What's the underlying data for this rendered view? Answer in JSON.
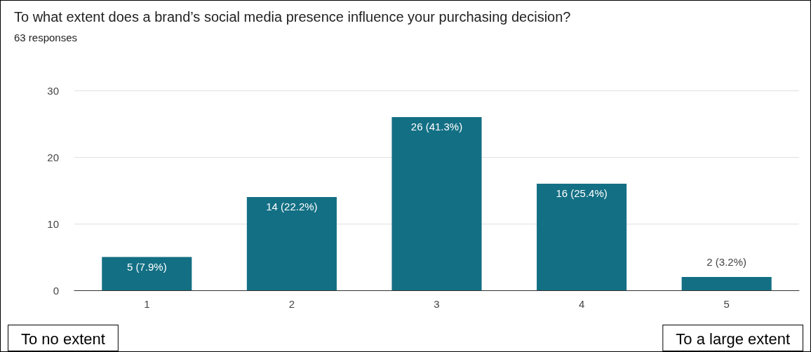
{
  "chart_data": {
    "type": "bar",
    "title": "To what extent does a brand’s social media presence influence your purchasing decision?",
    "subtitle": "63 responses",
    "categories": [
      "1",
      "2",
      "3",
      "4",
      "5"
    ],
    "values": [
      5,
      14,
      26,
      16,
      2
    ],
    "value_labels": [
      "5 (7.9%)",
      "14 (22.2%)",
      "26 (41.3%)",
      "16 (25.4%)",
      "2 (3.2%)"
    ],
    "color": "#136f84",
    "ylim": [
      0,
      30
    ],
    "yticks": [
      0,
      10,
      20,
      30
    ],
    "grid": true,
    "annotations": [
      "To no extent",
      "To a large extent"
    ]
  }
}
